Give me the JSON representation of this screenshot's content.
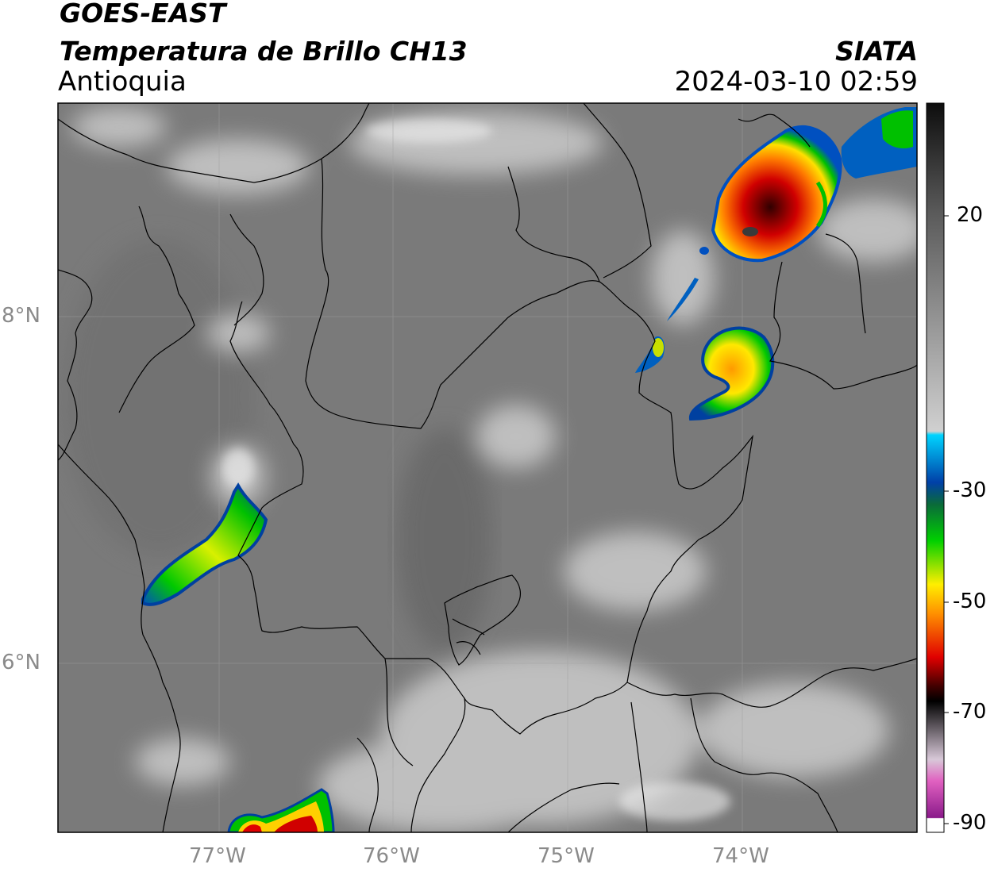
{
  "header": {
    "satellite": "GOES-EAST",
    "product": "Temperatura de Brillo CH13",
    "region": "Antioquia",
    "agency": "SIATA",
    "timestamp": "2024-03-10 02:59"
  },
  "axes": {
    "lon_ticks": [
      "77°W",
      "76°W",
      "75°W",
      "74°W"
    ],
    "lat_ticks": [
      "8°N",
      "6°N"
    ]
  },
  "colorbar": {
    "tick_labels": [
      "20",
      "-30",
      "-50",
      "-70",
      "-90"
    ],
    "colors": {
      "gray_top": "#101010",
      "gray_bottom": "#f2f2f2",
      "cyan": "#00d4ff",
      "blue": "#0033a0",
      "green": "#00c800",
      "yellow": "#ffe600",
      "orange": "#ff8c00",
      "red": "#e00000",
      "dark_red": "#500000",
      "pink": "#e060c0",
      "purple": "#8a1a8a"
    }
  },
  "map_colors": {
    "background": "#7a7a7a",
    "cloud_light": "#d8d8d8",
    "border_line": "#000000",
    "grid_line": "#a0a0a0"
  }
}
